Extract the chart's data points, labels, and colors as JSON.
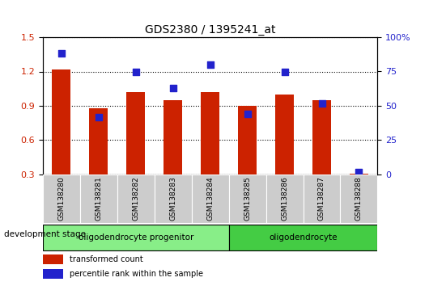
{
  "title": "GDS2380 / 1395241_at",
  "categories": [
    "GSM138280",
    "GSM138281",
    "GSM138282",
    "GSM138283",
    "GSM138284",
    "GSM138285",
    "GSM138286",
    "GSM138287",
    "GSM138288"
  ],
  "red_values": [
    1.22,
    0.88,
    1.02,
    0.95,
    1.02,
    0.9,
    1.0,
    0.95,
    0.31
  ],
  "blue_values": [
    88,
    42,
    75,
    63,
    80,
    44,
    75,
    52,
    2
  ],
  "left_ylim": [
    0.3,
    1.5
  ],
  "right_ylim": [
    0,
    100
  ],
  "left_yticks": [
    0.3,
    0.6,
    0.9,
    1.2,
    1.5
  ],
  "right_yticks": [
    0,
    25,
    50,
    75,
    100
  ],
  "right_yticklabels": [
    "0",
    "25",
    "50",
    "75",
    "100%"
  ],
  "bar_bottom": 0.3,
  "bar_color": "#cc2200",
  "dot_color": "#2222cc",
  "sample_bg": "#cccccc",
  "group1_label": "oligodendrocyte progenitor",
  "group2_label": "oligodendrocyte",
  "group1_indices": [
    0,
    1,
    2,
    3,
    4
  ],
  "group2_indices": [
    5,
    6,
    7,
    8
  ],
  "group1_color": "#88ee88",
  "group2_color": "#44cc44",
  "dev_stage_label": "development stage",
  "legend_red": "transformed count",
  "legend_blue": "percentile rank within the sample",
  "dot_size": 28,
  "bar_width": 0.5
}
